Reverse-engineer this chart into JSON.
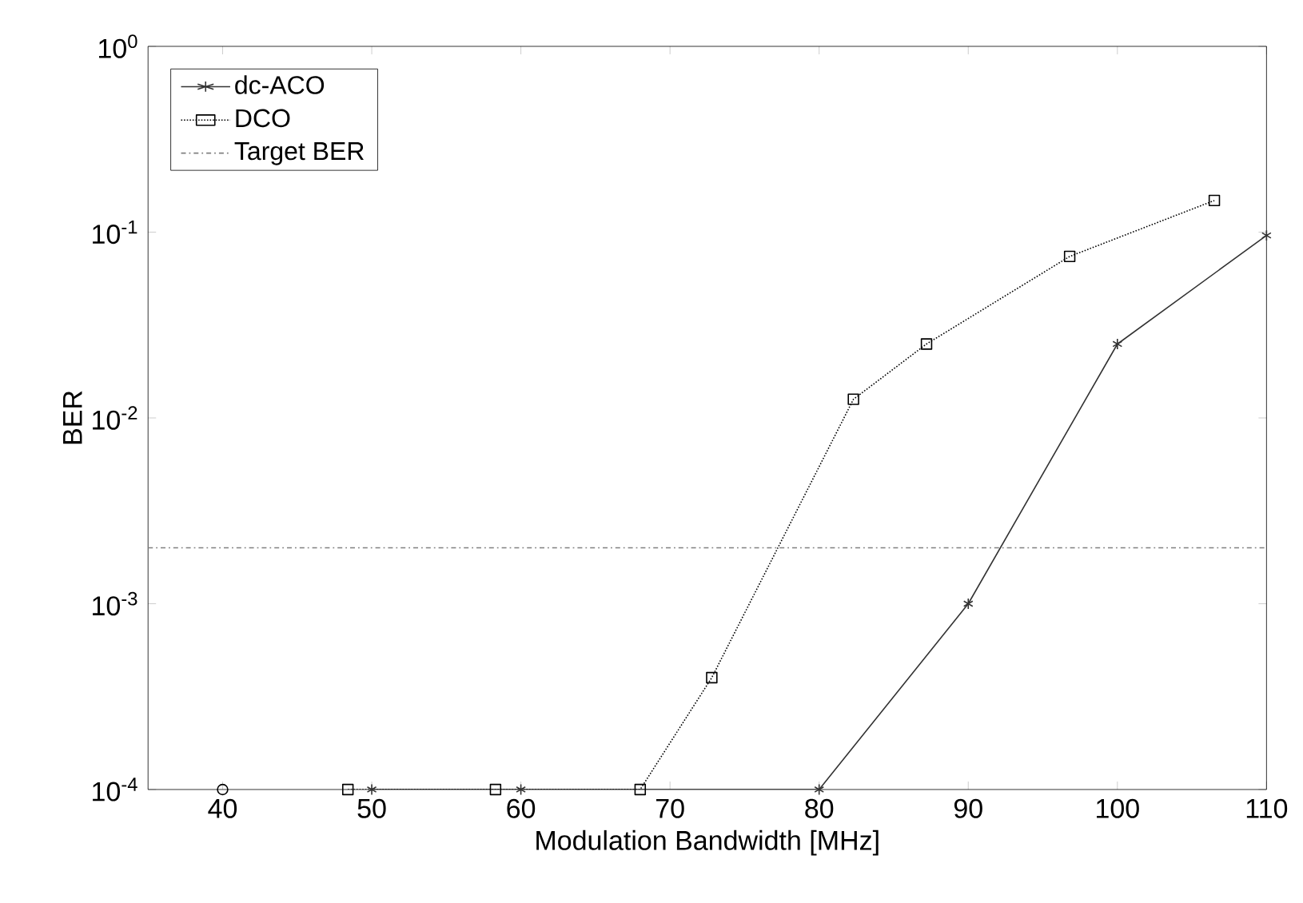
{
  "chart_data": {
    "type": "line",
    "xlabel": "Modulation Bandwidth [MHz]",
    "ylabel": "BER",
    "log": "y",
    "xlim": [
      35,
      110
    ],
    "xticks": [
      40,
      50,
      60,
      70,
      80,
      90,
      100,
      110
    ],
    "ylim": [
      0.0001,
      1
    ],
    "yticks": [
      {
        "value": 0.0001,
        "label": "10$^{-4}$"
      },
      {
        "value": 0.001,
        "label": "10$^{-3}$"
      },
      {
        "value": 0.01,
        "label": "10$^{-2}$"
      },
      {
        "value": 0.1,
        "label": "10$^{-1}$"
      },
      {
        "value": 1,
        "label": "10$^{0}$"
      }
    ],
    "legend": "top left",
    "grid": false,
    "series": [
      {
        "name": "dc-ACO",
        "color": "#333333",
        "marker": "cross",
        "line_style": "solid",
        "x": [
          50,
          60,
          80,
          90,
          100,
          110
        ],
        "values": [
          0.0001,
          0.0001,
          0.0001,
          0.001,
          0.025,
          0.096
        ]
      },
      {
        "name": "DCO",
        "color": "#000000",
        "marker": "square",
        "line_style": "dotted",
        "x": [
          48.4,
          58.3,
          68,
          72.8,
          82.3,
          87.2,
          96.8,
          106.5
        ],
        "values": [
          0.0001,
          0.0001,
          0.0001,
          0.0004,
          0.0126,
          0.025,
          0.074,
          0.148
        ]
      },
      {
        "type": "scatter",
        "color": "#000000",
        "marker": "circle",
        "x": [
          40
        ],
        "values": [
          0.0001
        ]
      }
    ],
    "ref_lines": [
      {
        "axis": "y",
        "value": 0.002,
        "label": "Target BER",
        "color": "#808080",
        "line_style": "dashdot"
      }
    ]
  }
}
